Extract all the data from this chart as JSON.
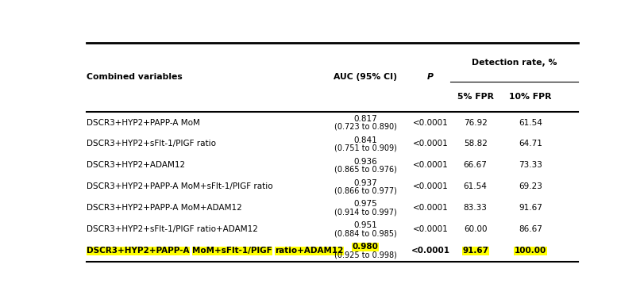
{
  "rows": [
    {
      "combined_variables": "DSCR3+HYP2+PAPP-A MoM",
      "auc": "0.817",
      "ci": "(0.723 to 0.890)",
      "p": "<0.0001",
      "fpr5": "76.92",
      "fpr10": "61.54",
      "highlight": false
    },
    {
      "combined_variables": "DSCR3+HYP2+sFlt-1/PlGF ratio",
      "auc": "0.841",
      "ci": "(0.751 to 0.909)",
      "p": "<0.0001",
      "fpr5": "58.82",
      "fpr10": "64.71",
      "highlight": false
    },
    {
      "combined_variables": "DSCR3+HYP2+ADAM12",
      "auc": "0.936",
      "ci": "(0.865 to 0.976)",
      "p": "<0.0001",
      "fpr5": "66.67",
      "fpr10": "73.33",
      "highlight": false
    },
    {
      "combined_variables": "DSCR3+HYP2+PAPP-A MoM+sFlt-1/PlGF ratio",
      "auc": "0.937",
      "ci": "(0.866 to 0.977)",
      "p": "<0.0001",
      "fpr5": "61.54",
      "fpr10": "69.23",
      "highlight": false
    },
    {
      "combined_variables": "DSCR3+HYP2+PAPP-A MoM+ADAM12",
      "auc": "0.975",
      "ci": "(0.914 to 0.997)",
      "p": "<0.0001",
      "fpr5": "83.33",
      "fpr10": "91.67",
      "highlight": false
    },
    {
      "combined_variables": "DSCR3+HYP2+sFlt-1/PlGF ratio+ADAM12",
      "auc": "0.951",
      "ci": "(0.884 to 0.985)",
      "p": "<0.0001",
      "fpr5": "60.00",
      "fpr10": "86.67",
      "highlight": false
    },
    {
      "combined_variables": "DSCR3+HYP2+PAPP-A MoM+sFlt-1/PlGF ratio+ADAM12",
      "auc": "0.980",
      "ci": "(0.925 to 0.998)",
      "p": "<0.0001",
      "fpr5": "91.67",
      "fpr10": "100.00",
      "highlight": true,
      "hl_parts": [
        "DSCR3+HYP2+PAPP-A",
        " ",
        "MoM+sFlt-1/PlGF",
        " ",
        "ratio+ADAM12"
      ]
    }
  ],
  "header1": "Combined variables",
  "header2": "AUC (95% CI)",
  "header3": "P",
  "header4": "Detection rate, %",
  "header5": "5% FPR",
  "header6": "10% FPR",
  "highlight_color": "#FFFF00",
  "border_color": "#000000",
  "bg_color": "#FFFFFF",
  "text_color": "#000000",
  "figsize": [
    8.12,
    3.77
  ],
  "dpi": 100
}
